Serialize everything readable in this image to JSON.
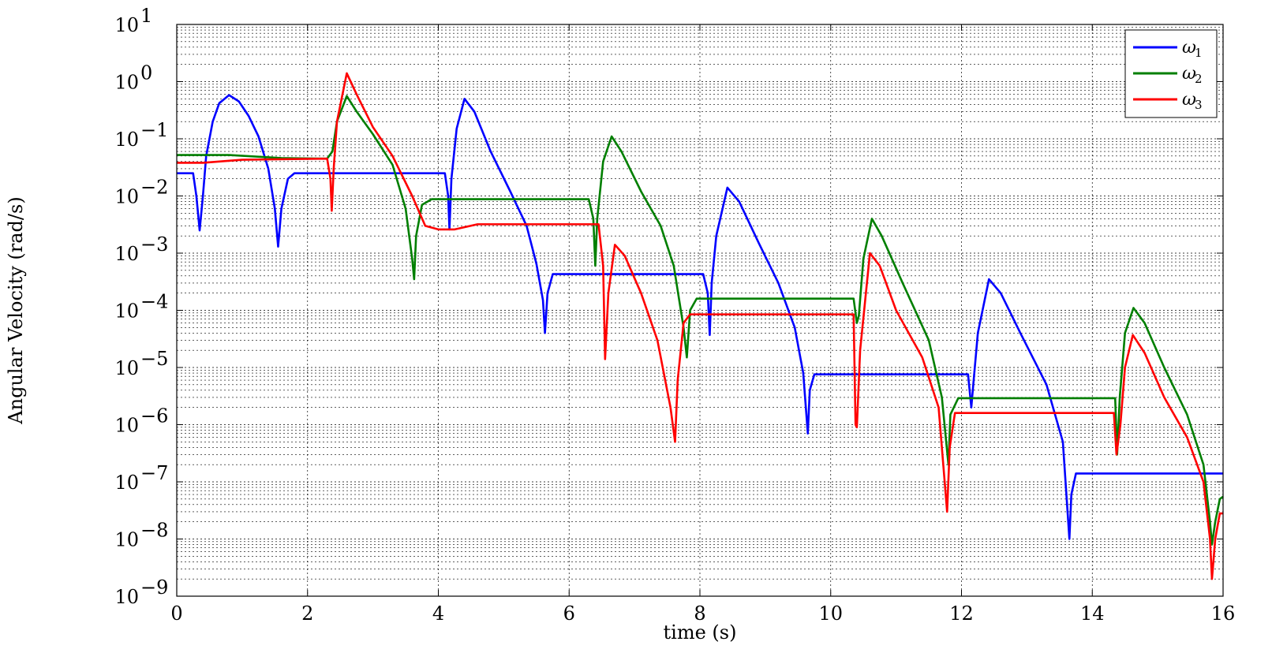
{
  "chart_data": {
    "type": "line",
    "xlabel": "time (s)",
    "ylabel": "Angular Velocity (rad/s)",
    "xlim": [
      0,
      16
    ],
    "ylim": [
      1e-09,
      10
    ],
    "yscale": "log",
    "grid": "on (major and minor, dotted)",
    "legend_position": "top-right",
    "x_ticks": [
      0,
      2,
      4,
      6,
      8,
      10,
      12,
      14,
      16
    ],
    "x_tick_labels": [
      "0",
      "2",
      "4",
      "6",
      "8",
      "10",
      "12",
      "14",
      "16"
    ],
    "y_ticks": [
      1e-09,
      1e-08,
      1e-07,
      1e-06,
      1e-05,
      0.0001,
      0.001,
      0.01,
      0.1,
      1,
      10
    ],
    "y_tick_labels": [
      {
        "base": "10",
        "exp": "−9"
      },
      {
        "base": "10",
        "exp": "−8"
      },
      {
        "base": "10",
        "exp": "−7"
      },
      {
        "base": "10",
        "exp": "−6"
      },
      {
        "base": "10",
        "exp": "−5"
      },
      {
        "base": "10",
        "exp": "−4"
      },
      {
        "base": "10",
        "exp": "−3"
      },
      {
        "base": "10",
        "exp": "−2"
      },
      {
        "base": "10",
        "exp": "−1"
      },
      {
        "base": "10",
        "exp": "0"
      },
      {
        "base": "10",
        "exp": "1"
      }
    ],
    "series": [
      {
        "name": "ω1",
        "symbol": "ω",
        "subscript": "1",
        "color": "#0000ff",
        "points": [
          [
            0,
            0.025
          ],
          [
            0.25,
            0.025
          ],
          [
            0.3,
            0.01
          ],
          [
            0.35,
            0.0025
          ],
          [
            0.4,
            0.01
          ],
          [
            0.45,
            0.05
          ],
          [
            0.55,
            0.2
          ],
          [
            0.65,
            0.42
          ],
          [
            0.8,
            0.58
          ],
          [
            0.95,
            0.45
          ],
          [
            1.1,
            0.25
          ],
          [
            1.25,
            0.11
          ],
          [
            1.4,
            0.03
          ],
          [
            1.5,
            0.006
          ],
          [
            1.55,
            0.0013
          ],
          [
            1.6,
            0.006
          ],
          [
            1.7,
            0.02
          ],
          [
            1.8,
            0.025
          ],
          [
            4.1,
            0.025
          ],
          [
            4.15,
            0.01
          ],
          [
            4.17,
            0.0026
          ],
          [
            4.2,
            0.02
          ],
          [
            4.28,
            0.15
          ],
          [
            4.4,
            0.5
          ],
          [
            4.55,
            0.3
          ],
          [
            4.8,
            0.06
          ],
          [
            5.1,
            0.012
          ],
          [
            5.35,
            0.003
          ],
          [
            5.5,
            0.00065
          ],
          [
            5.6,
            0.00015
          ],
          [
            5.63,
            4e-05
          ],
          [
            5.67,
            0.0002
          ],
          [
            5.75,
            0.00043
          ],
          [
            8.05,
            0.00043
          ],
          [
            8.12,
            0.0002
          ],
          [
            8.15,
            3.7e-05
          ],
          [
            8.18,
            0.0003
          ],
          [
            8.25,
            0.002
          ],
          [
            8.42,
            0.014
          ],
          [
            8.6,
            0.008
          ],
          [
            8.9,
            0.0015
          ],
          [
            9.2,
            0.0003
          ],
          [
            9.45,
            5e-05
          ],
          [
            9.58,
            8e-06
          ],
          [
            9.65,
            7e-07
          ],
          [
            9.68,
            4e-06
          ],
          [
            9.75,
            7.6e-06
          ],
          [
            12.1,
            7.6e-06
          ],
          [
            12.15,
            2e-06
          ],
          [
            12.18,
            5e-06
          ],
          [
            12.25,
            4e-05
          ],
          [
            12.42,
            0.00035
          ],
          [
            12.6,
            0.0002
          ],
          [
            12.9,
            4e-05
          ],
          [
            13.3,
            5e-06
          ],
          [
            13.55,
            5e-07
          ],
          [
            13.65,
            1e-08
          ],
          [
            13.68,
            6e-08
          ],
          [
            13.75,
            1.4e-07
          ],
          [
            16,
            1.4e-07
          ]
        ]
      },
      {
        "name": "ω2",
        "symbol": "ω",
        "subscript": "2",
        "color": "#007f00",
        "points": [
          [
            0,
            0.052
          ],
          [
            0.8,
            0.052
          ],
          [
            1.6,
            0.046
          ],
          [
            2.3,
            0.045
          ],
          [
            2.38,
            0.06
          ],
          [
            2.45,
            0.2
          ],
          [
            2.6,
            0.56
          ],
          [
            2.75,
            0.3
          ],
          [
            3.0,
            0.12
          ],
          [
            3.3,
            0.035
          ],
          [
            3.5,
            0.006
          ],
          [
            3.6,
            0.0008
          ],
          [
            3.63,
            0.00035
          ],
          [
            3.66,
            0.002
          ],
          [
            3.75,
            0.007
          ],
          [
            3.9,
            0.0088
          ],
          [
            6.3,
            0.0088
          ],
          [
            6.37,
            0.004
          ],
          [
            6.4,
            0.0006
          ],
          [
            6.43,
            0.004
          ],
          [
            6.52,
            0.04
          ],
          [
            6.65,
            0.11
          ],
          [
            6.8,
            0.06
          ],
          [
            7.1,
            0.012
          ],
          [
            7.4,
            0.003
          ],
          [
            7.6,
            0.0006
          ],
          [
            7.75,
            5e-05
          ],
          [
            7.8,
            1.5e-05
          ],
          [
            7.85,
            0.0001
          ],
          [
            7.95,
            0.00016
          ],
          [
            10.35,
            0.00016
          ],
          [
            10.4,
            6e-05
          ],
          [
            10.43,
            8e-05
          ],
          [
            10.5,
            0.0008
          ],
          [
            10.63,
            0.004
          ],
          [
            10.78,
            0.002
          ],
          [
            11.1,
            0.0003
          ],
          [
            11.5,
            3e-05
          ],
          [
            11.7,
            3e-06
          ],
          [
            11.8,
            2e-07
          ],
          [
            11.83,
            1.5e-06
          ],
          [
            11.95,
            2.9e-06
          ],
          [
            14.35,
            2.9e-06
          ],
          [
            14.38,
            3e-07
          ],
          [
            14.42,
            3e-06
          ],
          [
            14.5,
            4e-05
          ],
          [
            14.63,
            0.00011
          ],
          [
            14.8,
            6e-05
          ],
          [
            15.1,
            1e-05
          ],
          [
            15.45,
            1.5e-06
          ],
          [
            15.7,
            2e-07
          ],
          [
            15.8,
            2e-08
          ],
          [
            15.83,
            8e-09
          ],
          [
            15.88,
            2e-08
          ],
          [
            15.95,
            5e-08
          ],
          [
            16,
            5.5e-08
          ]
        ]
      },
      {
        "name": "ω3",
        "symbol": "ω",
        "subscript": "3",
        "color": "#ff0000",
        "points": [
          [
            0,
            0.038
          ],
          [
            0.4,
            0.038
          ],
          [
            1.0,
            0.043
          ],
          [
            2.3,
            0.045
          ],
          [
            2.35,
            0.02
          ],
          [
            2.37,
            0.0055
          ],
          [
            2.4,
            0.03
          ],
          [
            2.45,
            0.2
          ],
          [
            2.6,
            1.4
          ],
          [
            2.75,
            0.6
          ],
          [
            3.0,
            0.16
          ],
          [
            3.3,
            0.05
          ],
          [
            3.6,
            0.01
          ],
          [
            3.8,
            0.003
          ],
          [
            4.0,
            0.0026
          ],
          [
            4.25,
            0.0026
          ],
          [
            4.6,
            0.0032
          ],
          [
            6.45,
            0.0032
          ],
          [
            6.52,
            0.0006
          ],
          [
            6.55,
            1.4e-05
          ],
          [
            6.6,
            0.0002
          ],
          [
            6.7,
            0.0014
          ],
          [
            6.85,
            0.0009
          ],
          [
            7.1,
            0.0002
          ],
          [
            7.35,
            3e-05
          ],
          [
            7.55,
            2e-06
          ],
          [
            7.62,
            5e-07
          ],
          [
            7.66,
            6e-06
          ],
          [
            7.75,
            6e-05
          ],
          [
            7.85,
            8.5e-05
          ],
          [
            10.35,
            8.5e-05
          ],
          [
            10.38,
            1e-06
          ],
          [
            10.4,
            9e-07
          ],
          [
            10.45,
            2e-05
          ],
          [
            10.6,
            0.001
          ],
          [
            10.75,
            0.0006
          ],
          [
            11.0,
            0.0001
          ],
          [
            11.4,
            1.5e-05
          ],
          [
            11.65,
            2e-06
          ],
          [
            11.78,
            3e-08
          ],
          [
            11.82,
            4e-07
          ],
          [
            11.9,
            1.6e-06
          ],
          [
            14.33,
            1.6e-06
          ],
          [
            14.37,
            3e-07
          ],
          [
            14.43,
            1e-06
          ],
          [
            14.5,
            1e-05
          ],
          [
            14.62,
            3.7e-05
          ],
          [
            14.8,
            1.8e-05
          ],
          [
            15.1,
            3e-06
          ],
          [
            15.45,
            6e-07
          ],
          [
            15.7,
            1e-07
          ],
          [
            15.8,
            1e-08
          ],
          [
            15.83,
            2e-09
          ],
          [
            15.88,
            1e-08
          ],
          [
            15.95,
            2.8e-08
          ],
          [
            16,
            2.8e-08
          ]
        ]
      }
    ]
  }
}
